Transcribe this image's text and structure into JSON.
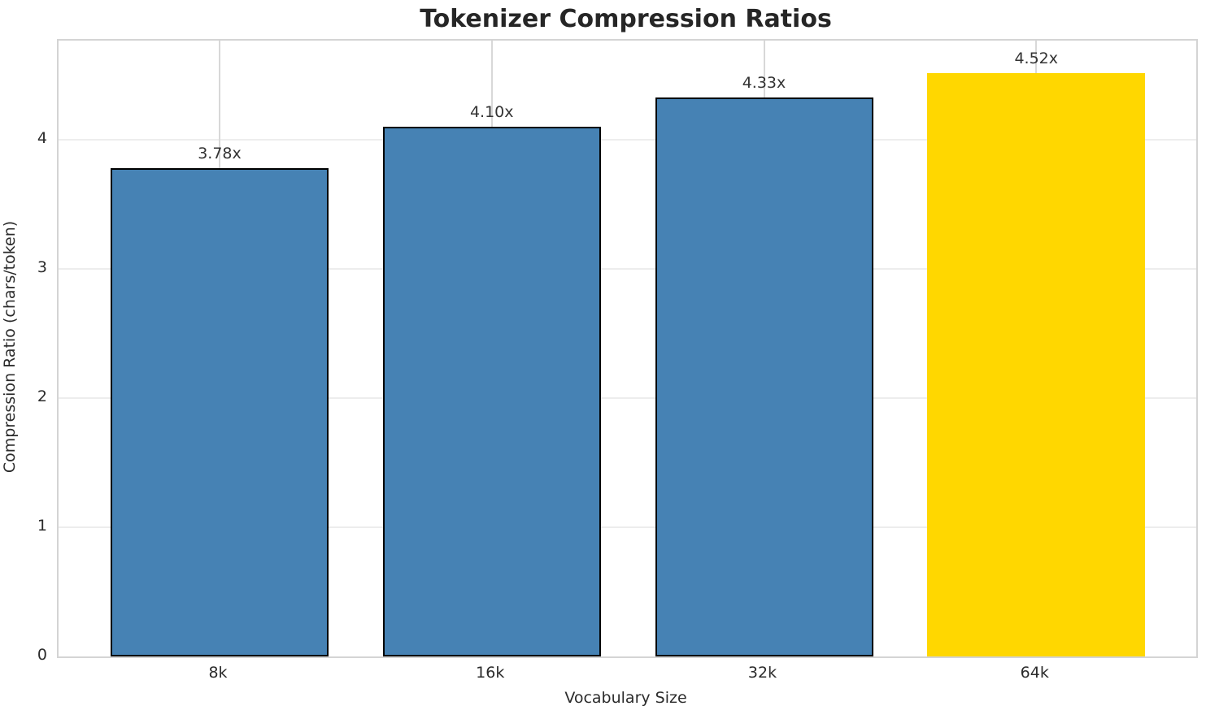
{
  "chart_data": {
    "type": "bar",
    "title": "Tokenizer Compression Ratios",
    "xlabel": "Vocabulary Size",
    "ylabel": "Compression Ratio (chars/token)",
    "categories": [
      "8k",
      "16k",
      "32k",
      "64k"
    ],
    "values": [
      3.78,
      4.1,
      4.33,
      4.52
    ],
    "value_labels": [
      "3.78x",
      "4.10x",
      "4.33x",
      "4.52x"
    ],
    "bar_colors": [
      "#4682B4",
      "#4682B4",
      "#4682B4",
      "#FFD700"
    ],
    "bar_edge_colors": [
      "#000000",
      "#000000",
      "#000000",
      "none"
    ],
    "yticks": [
      0,
      1,
      2,
      3,
      4
    ],
    "ylim": [
      0,
      4.77
    ],
    "grid": true,
    "legend": "none",
    "highlight_color": "#FFD700",
    "base_color": "#4682B4"
  }
}
